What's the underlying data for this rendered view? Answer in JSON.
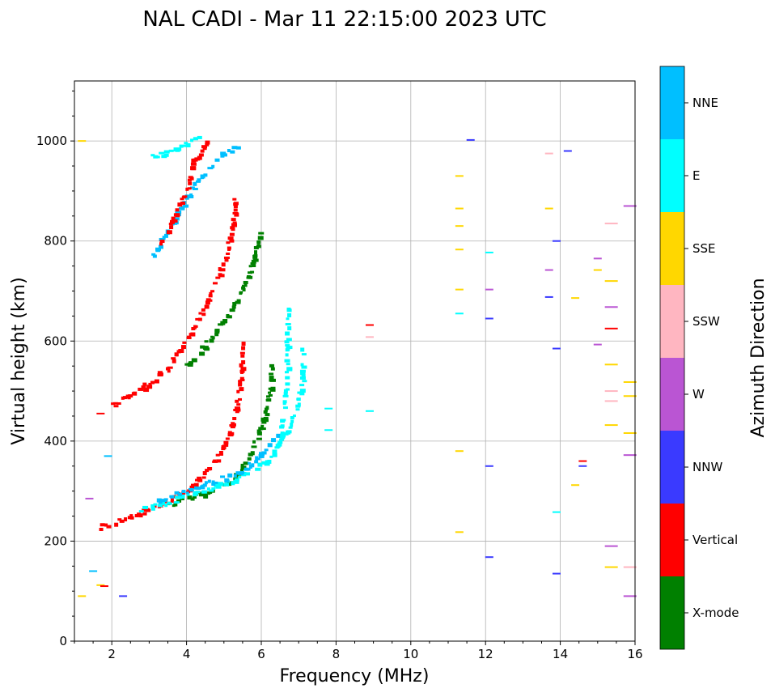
{
  "chart_data": {
    "type": "scatter",
    "title": "NAL CADI - Mar 11 22:15:00 2023 UTC",
    "xlabel": "Frequency (MHz)",
    "ylabel": "Virtual height (km)",
    "xlim": [
      1,
      16
    ],
    "ylim": [
      0,
      1120
    ],
    "xticks": [
      2,
      4,
      6,
      8,
      10,
      12,
      14,
      16
    ],
    "yticks": [
      0,
      200,
      400,
      600,
      800,
      1000
    ],
    "grid": true,
    "colorbar": {
      "label": "Azimuth Direction",
      "categories": [
        {
          "name": "X-mode",
          "color": "#008000"
        },
        {
          "name": "Vertical",
          "color": "#ff0000"
        },
        {
          "name": "NNW",
          "color": "#3a3aff"
        },
        {
          "name": "W",
          "color": "#ba55d3"
        },
        {
          "name": "SSW",
          "color": "#ffb6c1"
        },
        {
          "name": "SSE",
          "color": "#ffd700"
        },
        {
          "name": "E",
          "color": "#00ffff"
        },
        {
          "name": "NNE",
          "color": "#00bfff"
        }
      ]
    },
    "traces": [
      {
        "dir": "Vertical",
        "points": [
          [
            1.7,
            228
          ],
          [
            2.5,
            250
          ],
          [
            3.3,
            272
          ],
          [
            4,
            298
          ],
          [
            4.5,
            335
          ],
          [
            5,
            385
          ],
          [
            5.3,
            450
          ],
          [
            5.45,
            520
          ],
          [
            5.5,
            600
          ]
        ]
      },
      {
        "dir": "X-mode",
        "points": [
          [
            3.3,
            268
          ],
          [
            4,
            285
          ],
          [
            4.6,
            298
          ],
          [
            5.2,
            320
          ],
          [
            5.6,
            360
          ],
          [
            5.9,
            405
          ],
          [
            6.1,
            450
          ],
          [
            6.25,
            500
          ],
          [
            6.3,
            560
          ]
        ]
      },
      {
        "dir": "E",
        "points": [
          [
            2.8,
            262
          ],
          [
            3.5,
            278
          ],
          [
            4.5,
            300
          ],
          [
            5.5,
            330
          ],
          [
            6.2,
            360
          ],
          [
            6.6,
            410
          ],
          [
            6.95,
            460
          ],
          [
            7.1,
            520
          ],
          [
            7.1,
            585
          ]
        ]
      },
      {
        "dir": "NNE",
        "points": [
          [
            3.2,
            280
          ],
          [
            4,
            300
          ],
          [
            4.8,
            320
          ],
          [
            5.6,
            345
          ],
          [
            6.1,
            380
          ],
          [
            6.5,
            420
          ]
        ]
      },
      {
        "dir": "Vertical",
        "points": [
          [
            2,
            470
          ],
          [
            2.8,
            505
          ],
          [
            3.5,
            545
          ],
          [
            3.9,
            590
          ],
          [
            4.3,
            640
          ],
          [
            4.8,
            720
          ],
          [
            5.1,
            780
          ],
          [
            5.3,
            860
          ],
          [
            5.3,
            890
          ]
        ]
      },
      {
        "dir": "X-mode",
        "points": [
          [
            4,
            550
          ],
          [
            4.6,
            600
          ],
          [
            5.1,
            650
          ],
          [
            5.5,
            700
          ],
          [
            5.8,
            760
          ],
          [
            6,
            820
          ]
        ]
      },
      {
        "dir": "NNE",
        "points": [
          [
            3.1,
            770
          ],
          [
            3.5,
            820
          ],
          [
            3.9,
            870
          ],
          [
            4.3,
            920
          ],
          [
            4.8,
            965
          ],
          [
            5.4,
            990
          ]
        ]
      },
      {
        "dir": "Vertical",
        "points": [
          [
            3.3,
            790
          ],
          [
            3.7,
            850
          ],
          [
            4,
            900
          ],
          [
            4.2,
            960
          ],
          [
            4.6,
            1000
          ]
        ]
      },
      {
        "dir": "E",
        "points": [
          [
            3.1,
            968
          ],
          [
            3.6,
            978
          ],
          [
            4,
            992
          ],
          [
            4.4,
            1010
          ]
        ]
      },
      {
        "dir": "E",
        "points": [
          [
            6.5,
            400
          ],
          [
            6.6,
            460
          ],
          [
            6.7,
            530
          ],
          [
            6.7,
            600
          ],
          [
            6.7,
            670
          ]
        ]
      }
    ],
    "isolated": [
      [
        11.3,
        930,
        "SSE"
      ],
      [
        11.3,
        865,
        "SSE"
      ],
      [
        11.3,
        830,
        "SSE"
      ],
      [
        11.3,
        783,
        "SSE"
      ],
      [
        11.3,
        703,
        "SSE"
      ],
      [
        11.3,
        655,
        "E"
      ],
      [
        11.3,
        380,
        "SSE"
      ],
      [
        11.3,
        218,
        "SSE"
      ],
      [
        11.6,
        1002,
        "NNW"
      ],
      [
        12.1,
        777,
        "E"
      ],
      [
        12.1,
        703,
        "W"
      ],
      [
        12.1,
        645,
        "NNW"
      ],
      [
        12.1,
        350,
        "NNW"
      ],
      [
        12.1,
        168,
        "NNW"
      ],
      [
        13.7,
        975,
        "SSW"
      ],
      [
        13.7,
        865,
        "SSE"
      ],
      [
        13.7,
        742,
        "W"
      ],
      [
        13.7,
        688,
        "NNW"
      ],
      [
        13.9,
        800,
        "NNW"
      ],
      [
        13.9,
        585,
        "NNW"
      ],
      [
        13.9,
        258,
        "E"
      ],
      [
        13.9,
        135,
        "NNW"
      ],
      [
        14.2,
        980,
        "NNW"
      ],
      [
        14.4,
        686,
        "SSE"
      ],
      [
        14.4,
        312,
        "SSE"
      ],
      [
        14.6,
        360,
        "Vertical"
      ],
      [
        14.6,
        350,
        "NNW"
      ],
      [
        15.0,
        765,
        "W"
      ],
      [
        15.0,
        742,
        "SSE"
      ],
      [
        15.0,
        593,
        "W"
      ],
      [
        15.3,
        835,
        "SSW"
      ],
      [
        15.3,
        720,
        "SSE"
      ],
      [
        15.3,
        668,
        "W"
      ],
      [
        15.3,
        625,
        "Vertical"
      ],
      [
        15.3,
        553,
        "SSE"
      ],
      [
        15.3,
        500,
        "SSW"
      ],
      [
        15.3,
        480,
        "SSW"
      ],
      [
        15.3,
        432,
        "SSE"
      ],
      [
        15.3,
        190,
        "W"
      ],
      [
        15.3,
        148,
        "SSE"
      ],
      [
        15.8,
        870,
        "W"
      ],
      [
        15.8,
        518,
        "SSE"
      ],
      [
        15.8,
        490,
        "SSE"
      ],
      [
        15.8,
        416,
        "SSE"
      ],
      [
        15.8,
        372,
        "W"
      ],
      [
        15.8,
        148,
        "SSW"
      ],
      [
        15.8,
        90,
        "W"
      ],
      [
        8.9,
        632,
        "Vertical"
      ],
      [
        8.9,
        608,
        "SSW"
      ],
      [
        8.9,
        460,
        "E"
      ],
      [
        7.8,
        465,
        "E"
      ],
      [
        7.8,
        422,
        "E"
      ],
      [
        1.2,
        1000,
        "SSE"
      ],
      [
        1.2,
        90,
        "SSE"
      ],
      [
        1.5,
        140,
        "NNE"
      ],
      [
        1.7,
        112,
        "SSE"
      ],
      [
        1.8,
        110,
        "Vertical"
      ],
      [
        2.3,
        90,
        "NNW"
      ],
      [
        1.4,
        285,
        "W"
      ],
      [
        1.9,
        370,
        "NNE"
      ],
      [
        1.7,
        455,
        "Vertical"
      ]
    ]
  }
}
